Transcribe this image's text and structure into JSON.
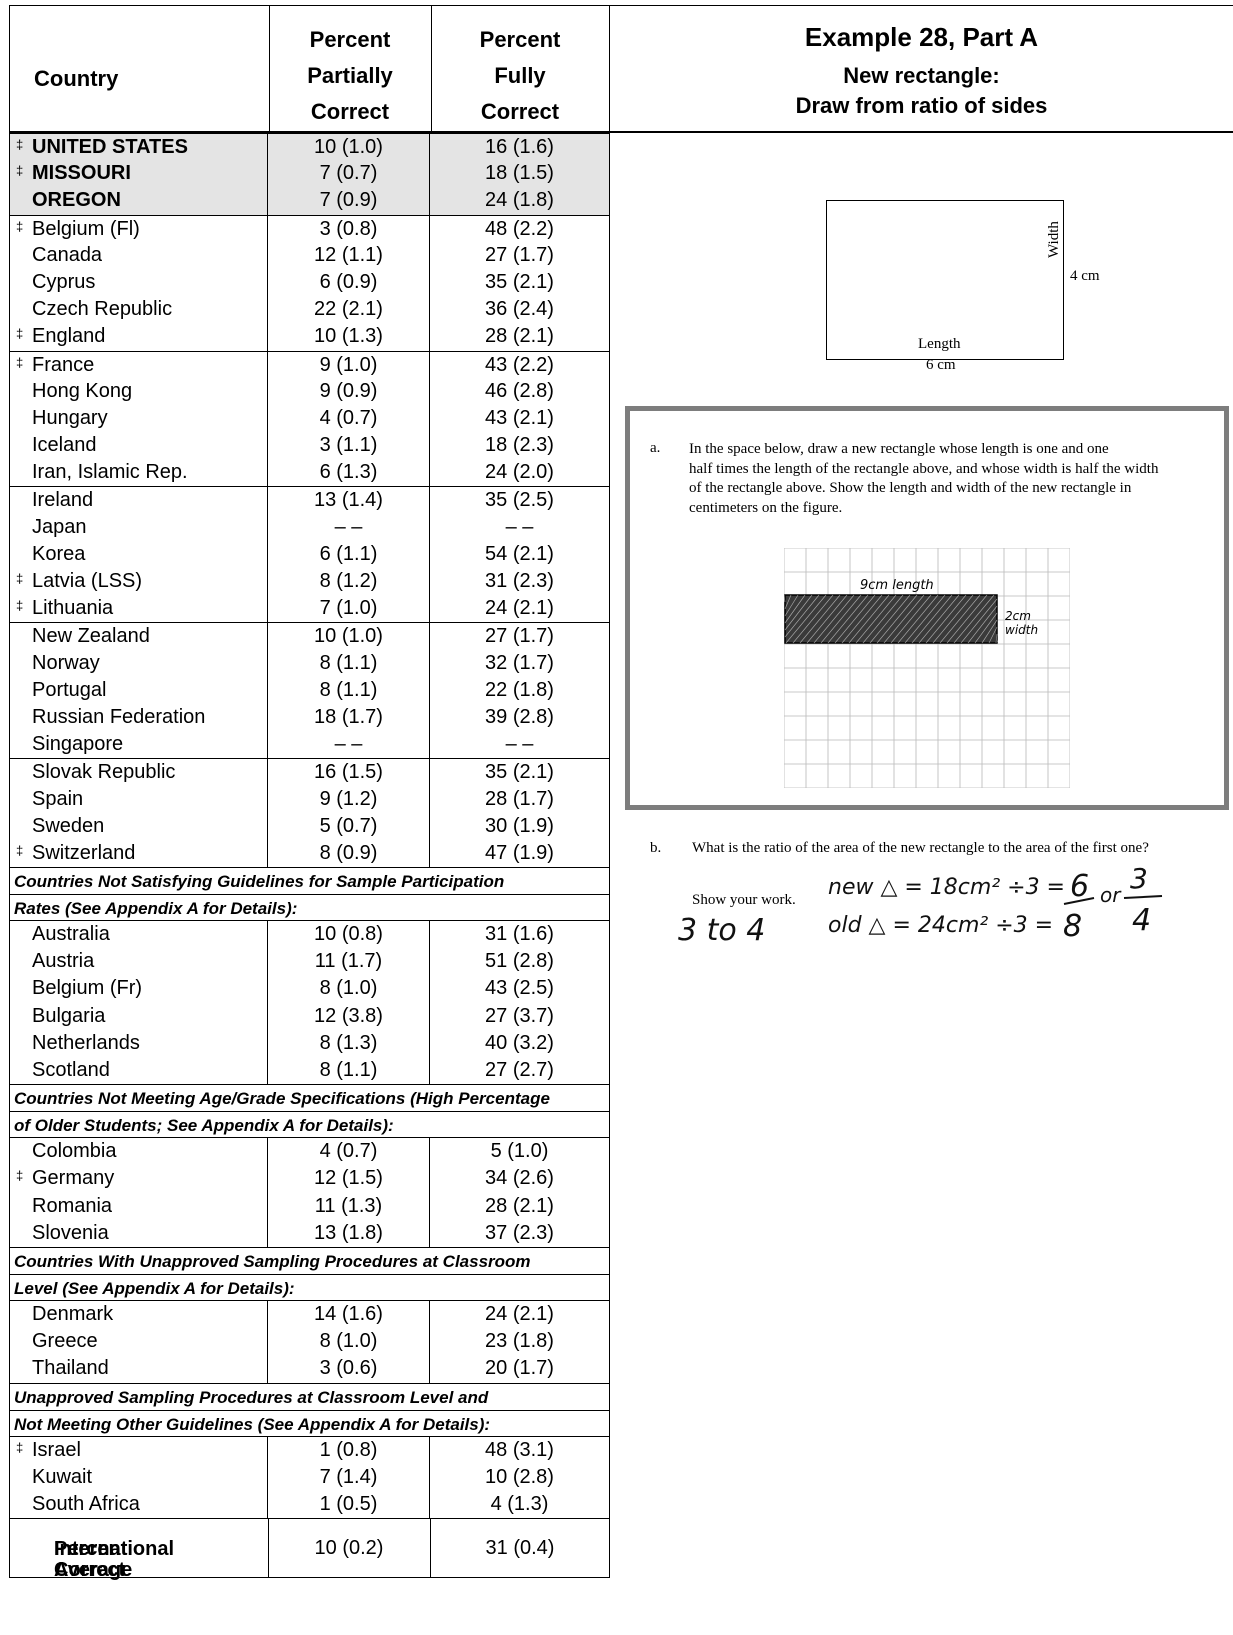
{
  "header": {
    "country": "Country",
    "partial": [
      "Percent",
      "Partially",
      "Correct"
    ],
    "fully": [
      "Percent",
      "Fully",
      "Correct"
    ]
  },
  "groups": [
    {
      "shade": true,
      "rows": [
        {
          "dagger": true,
          "country": "UNITED STATES",
          "partial": "10 (1.0)",
          "fully": "16 (1.6)",
          "bold": true
        },
        {
          "dagger": true,
          "country": "MISSOURI",
          "partial": "7 (0.7)",
          "fully": "18 (1.5)",
          "bold": true
        },
        {
          "dagger": false,
          "country": "OREGON",
          "partial": "7 (0.9)",
          "fully": "24 (1.8)",
          "bold": true
        }
      ]
    },
    {
      "rows": [
        {
          "dagger": true,
          "country": "Belgium (Fl)",
          "partial": "3 (0.8)",
          "fully": "48 (2.2)"
        },
        {
          "dagger": false,
          "country": "Canada",
          "partial": "12 (1.1)",
          "fully": "27 (1.7)"
        },
        {
          "dagger": false,
          "country": "Cyprus",
          "partial": "6 (0.9)",
          "fully": "35 (2.1)"
        },
        {
          "dagger": false,
          "country": "Czech Republic",
          "partial": "22 (2.1)",
          "fully": "36 (2.4)"
        },
        {
          "dagger": true,
          "country": "England",
          "partial": "10 (1.3)",
          "fully": "28 (2.1)"
        }
      ]
    },
    {
      "rows": [
        {
          "dagger": true,
          "country": "France",
          "partial": "9 (1.0)",
          "fully": "43 (2.2)"
        },
        {
          "dagger": false,
          "country": "Hong Kong",
          "partial": "9 (0.9)",
          "fully": "46 (2.8)"
        },
        {
          "dagger": false,
          "country": "Hungary",
          "partial": "4 (0.7)",
          "fully": "43 (2.1)"
        },
        {
          "dagger": false,
          "country": "Iceland",
          "partial": "3 (1.1)",
          "fully": "18 (2.3)"
        },
        {
          "dagger": false,
          "country": "Iran, Islamic Rep.",
          "partial": "6 (1.3)",
          "fully": "24 (2.0)"
        }
      ]
    },
    {
      "rows": [
        {
          "dagger": false,
          "country": "Ireland",
          "partial": "13 (1.4)",
          "fully": "35 (2.5)"
        },
        {
          "dagger": false,
          "country": "Japan",
          "partial": "– –",
          "fully": "– –"
        },
        {
          "dagger": false,
          "country": "Korea",
          "partial": "6 (1.1)",
          "fully": "54 (2.1)"
        },
        {
          "dagger": true,
          "country": "Latvia (LSS)",
          "partial": "8 (1.2)",
          "fully": "31 (2.3)"
        },
        {
          "dagger": true,
          "country": "Lithuania",
          "partial": "7 (1.0)",
          "fully": "24 (2.1)"
        }
      ]
    },
    {
      "rows": [
        {
          "dagger": false,
          "country": "New Zealand",
          "partial": "10 (1.0)",
          "fully": "27 (1.7)"
        },
        {
          "dagger": false,
          "country": "Norway",
          "partial": "8 (1.1)",
          "fully": "32 (1.7)"
        },
        {
          "dagger": false,
          "country": "Portugal",
          "partial": "8 (1.1)",
          "fully": "22 (1.8)"
        },
        {
          "dagger": false,
          "country": "Russian Federation",
          "partial": "18 (1.7)",
          "fully": "39 (2.8)"
        },
        {
          "dagger": false,
          "country": "Singapore",
          "partial": "– –",
          "fully": "– –"
        }
      ]
    },
    {
      "rows": [
        {
          "dagger": false,
          "country": "Slovak Republic",
          "partial": "16 (1.5)",
          "fully": "35 (2.1)"
        },
        {
          "dagger": false,
          "country": "Spain",
          "partial": "9 (1.2)",
          "fully": "28 (1.7)"
        },
        {
          "dagger": false,
          "country": "Sweden",
          "partial": "5 (0.7)",
          "fully": "30 (1.9)"
        },
        {
          "dagger": true,
          "country": "Switzerland",
          "partial": "8 (0.9)",
          "fully": "47 (1.9)"
        }
      ]
    },
    {
      "section": [
        "Countries Not Satisfying Guidelines for Sample Participation",
        "Rates (See Appendix A for Details):"
      ],
      "rows": [
        {
          "dagger": false,
          "country": "Australia",
          "partial": "10 (0.8)",
          "fully": "31 (1.6)"
        },
        {
          "dagger": false,
          "country": "Austria",
          "partial": "11 (1.7)",
          "fully": "51 (2.8)"
        },
        {
          "dagger": false,
          "country": "Belgium (Fr)",
          "partial": "8 (1.0)",
          "fully": "43 (2.5)"
        },
        {
          "dagger": false,
          "country": "Bulgaria",
          "partial": "12 (3.8)",
          "fully": "27 (3.7)"
        },
        {
          "dagger": false,
          "country": "Netherlands",
          "partial": "8 (1.3)",
          "fully": "40 (3.2)"
        },
        {
          "dagger": false,
          "country": "Scotland",
          "partial": "8 (1.1)",
          "fully": "27 (2.7)"
        }
      ]
    },
    {
      "section": [
        "Countries Not Meeting Age/Grade Specifications (High Percentage",
        "of Older Students; See Appendix A for Details):"
      ],
      "rows": [
        {
          "dagger": false,
          "country": "Colombia",
          "partial": "4 (0.7)",
          "fully": "5 (1.0)"
        },
        {
          "dagger": true,
          "country": "Germany",
          "partial": "12 (1.5)",
          "fully": "34 (2.6)"
        },
        {
          "dagger": false,
          "country": "Romania",
          "partial": "11 (1.3)",
          "fully": "28 (2.1)"
        },
        {
          "dagger": false,
          "country": "Slovenia",
          "partial": "13 (1.8)",
          "fully": "37 (2.3)"
        }
      ]
    },
    {
      "section": [
        "Countries With Unapproved Sampling Procedures at Classroom",
        "Level (See Appendix A for Details):"
      ],
      "rows": [
        {
          "dagger": false,
          "country": "Denmark",
          "partial": "14 (1.6)",
          "fully": "24 (2.1)"
        },
        {
          "dagger": false,
          "country": "Greece",
          "partial": "8 (1.0)",
          "fully": "23 (1.8)"
        },
        {
          "dagger": false,
          "country": "Thailand",
          "partial": "3 (0.6)",
          "fully": "20 (1.7)"
        }
      ]
    },
    {
      "section": [
        "Unapproved Sampling Procedures at Classroom Level and",
        " Not Meeting Other Guidelines (See Appendix A for Details):"
      ],
      "rows": [
        {
          "dagger": true,
          "country": "Israel",
          "partial": "1 (0.8)",
          "fully": "48 (3.1)"
        },
        {
          "dagger": false,
          "country": "Kuwait",
          "partial": "7 (1.4)",
          "fully": "10 (2.8)"
        },
        {
          "dagger": false,
          "country": "South Africa",
          "partial": "1 (0.5)",
          "fully": "4 (1.3)"
        }
      ]
    }
  ],
  "average": {
    "label": [
      "International Average",
      "Percent Correct"
    ],
    "partial": "10 (0.2)",
    "fully": "31 (0.4)"
  },
  "dagger_symbol": "‡",
  "example": {
    "title": "Example 28, Part A",
    "subtitle1": "New rectangle:",
    "subtitle2": "Draw from ratio of sides",
    "rect_width_label": "Width",
    "rect_width_value": "4 cm",
    "rect_length_label": "Length",
    "rect_length_value": "6 cm",
    "qa_marker": "a.",
    "qa_lines": [
      "In the space below, draw a new rectangle whose length is one and one",
      "half times the length of the rectangle above, and whose width is half the width",
      "of the rectangle above. Show the length and width of the new rectangle in",
      "centimeters on the figure."
    ],
    "hand_length": "9cm length",
    "hand_width1": "2cm",
    "hand_width2": "width",
    "qb_marker": "b.",
    "qb_text": "What is the ratio of the area of the new rectangle to the area of the first one?",
    "show_work": "Show your work.",
    "hand_answer": "3 to 4",
    "hand_new": "new △ = 18cm² ÷3 =",
    "hand_old": "old △ = 24cm² ÷3 =",
    "hand_frac_num": "6",
    "hand_frac_den": "8",
    "hand_or": "or",
    "hand_frac2_num": "3",
    "hand_frac2_den": "4"
  }
}
